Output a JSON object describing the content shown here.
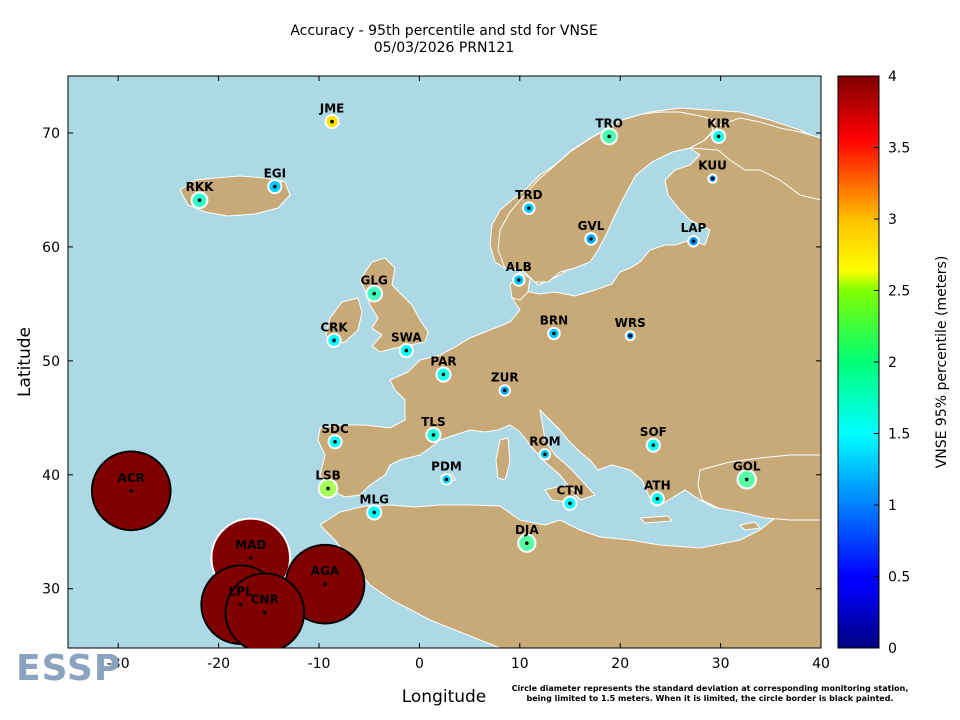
{
  "chart_data": {
    "type": "scatter",
    "title": "Accuracy - 95th percentile and std for VNSE",
    "subtitle": "05/03/2026 PRN121",
    "xlabel": "Longitude",
    "ylabel": "Latitude",
    "xlim": [
      -35,
      40
    ],
    "ylim": [
      24.8,
      75
    ],
    "xticks": [
      -30,
      -20,
      -10,
      0,
      10,
      20,
      30,
      40
    ],
    "yticks": [
      30,
      40,
      50,
      60,
      70
    ],
    "colorbar": {
      "label": "VNSE 95% percentile (meters)",
      "min": 0,
      "max": 4,
      "ticks": [
        "0",
        "0.5",
        "1",
        "1.5",
        "2",
        "2.5",
        "3",
        "3.5",
        "4"
      ]
    },
    "stations": [
      {
        "name": "JME",
        "lon": -8.7,
        "lat": 71.0,
        "p95": 2.6,
        "std": 0.25,
        "limited": false
      },
      {
        "name": "TRO",
        "lon": 18.9,
        "lat": 69.7,
        "p95": 1.8,
        "std": 0.3,
        "limited": false
      },
      {
        "name": "KIR",
        "lon": 29.8,
        "lat": 69.7,
        "p95": 1.6,
        "std": 0.25,
        "limited": false
      },
      {
        "name": "KUU",
        "lon": 29.2,
        "lat": 66.0,
        "p95": 1.1,
        "std": 0.16,
        "limited": false
      },
      {
        "name": "EGI",
        "lon": -14.4,
        "lat": 65.3,
        "p95": 1.3,
        "std": 0.25,
        "limited": false
      },
      {
        "name": "RKK",
        "lon": -21.9,
        "lat": 64.1,
        "p95": 1.7,
        "std": 0.3,
        "limited": false
      },
      {
        "name": "TRD",
        "lon": 10.9,
        "lat": 63.4,
        "p95": 1.3,
        "std": 0.22,
        "limited": false
      },
      {
        "name": "GVL",
        "lon": 17.1,
        "lat": 60.7,
        "p95": 1.2,
        "std": 0.22,
        "limited": false
      },
      {
        "name": "LAP",
        "lon": 27.3,
        "lat": 60.5,
        "p95": 1.1,
        "std": 0.2,
        "limited": false
      },
      {
        "name": "ALB",
        "lon": 9.9,
        "lat": 57.1,
        "p95": 1.3,
        "std": 0.22,
        "limited": false
      },
      {
        "name": "GLG",
        "lon": -4.5,
        "lat": 55.9,
        "p95": 1.75,
        "std": 0.3,
        "limited": false
      },
      {
        "name": "BRN",
        "lon": 13.4,
        "lat": 52.4,
        "p95": 1.3,
        "std": 0.22,
        "limited": false
      },
      {
        "name": "WRS",
        "lon": 21.0,
        "lat": 52.2,
        "p95": 1.1,
        "std": 0.17,
        "limited": false
      },
      {
        "name": "CRK",
        "lon": -8.5,
        "lat": 51.8,
        "p95": 1.5,
        "std": 0.25,
        "limited": false
      },
      {
        "name": "SWA",
        "lon": -1.3,
        "lat": 50.9,
        "p95": 1.5,
        "std": 0.25,
        "limited": false
      },
      {
        "name": "PAR",
        "lon": 2.4,
        "lat": 48.8,
        "p95": 1.6,
        "std": 0.27,
        "limited": false
      },
      {
        "name": "ZUR",
        "lon": 8.5,
        "lat": 47.4,
        "p95": 1.2,
        "std": 0.2,
        "limited": false
      },
      {
        "name": "TLS",
        "lon": 1.4,
        "lat": 43.5,
        "p95": 1.65,
        "std": 0.27,
        "limited": false
      },
      {
        "name": "SDC",
        "lon": -8.4,
        "lat": 42.9,
        "p95": 1.5,
        "std": 0.25,
        "limited": false
      },
      {
        "name": "SOF",
        "lon": 23.3,
        "lat": 42.6,
        "p95": 1.55,
        "std": 0.25,
        "limited": false
      },
      {
        "name": "ROM",
        "lon": 12.5,
        "lat": 41.8,
        "p95": 1.3,
        "std": 0.2,
        "limited": false
      },
      {
        "name": "PDM",
        "lon": 2.7,
        "lat": 39.6,
        "p95": 1.35,
        "std": 0.2,
        "limited": false
      },
      {
        "name": "GOL",
        "lon": 32.6,
        "lat": 39.6,
        "p95": 1.85,
        "std": 0.35,
        "limited": false
      },
      {
        "name": "LSB",
        "lon": -9.1,
        "lat": 38.8,
        "p95": 2.15,
        "std": 0.35,
        "limited": false
      },
      {
        "name": "ATH",
        "lon": 23.7,
        "lat": 37.9,
        "p95": 1.55,
        "std": 0.25,
        "limited": false
      },
      {
        "name": "CTN",
        "lon": 15.0,
        "lat": 37.5,
        "p95": 1.5,
        "std": 0.25,
        "limited": false
      },
      {
        "name": "MLG",
        "lon": -4.5,
        "lat": 36.7,
        "p95": 1.5,
        "std": 0.27,
        "limited": false
      },
      {
        "name": "DJA",
        "lon": 10.7,
        "lat": 34.0,
        "p95": 1.85,
        "std": 0.33,
        "limited": false
      },
      {
        "name": "ACR",
        "lon": -28.7,
        "lat": 38.6,
        "p95": 4.0,
        "std": 1.5,
        "limited": true
      },
      {
        "name": "MAD",
        "lon": -16.8,
        "lat": 32.7,
        "p95": 4.0,
        "std": 1.5,
        "limited": false
      },
      {
        "name": "AGA",
        "lon": -9.4,
        "lat": 30.4,
        "p95": 4.0,
        "std": 1.5,
        "limited": true
      },
      {
        "name": "LPL",
        "lon": -17.8,
        "lat": 28.6,
        "p95": 4.0,
        "std": 1.5,
        "limited": true
      },
      {
        "name": "CNR",
        "lon": -15.4,
        "lat": 27.9,
        "p95": 4.0,
        "std": 1.5,
        "limited": true
      }
    ]
  },
  "footnote": {
    "line1": "Circle diameter represents the standard deviation at corresponding monitoring station,",
    "line2": "being limited to 1.5 meters. When it is limited, the circle border is black painted."
  },
  "logo_text": "ESSP",
  "colors": {
    "sea": "#add8e6",
    "land": "#c8aa78",
    "border": "#ffffff"
  }
}
